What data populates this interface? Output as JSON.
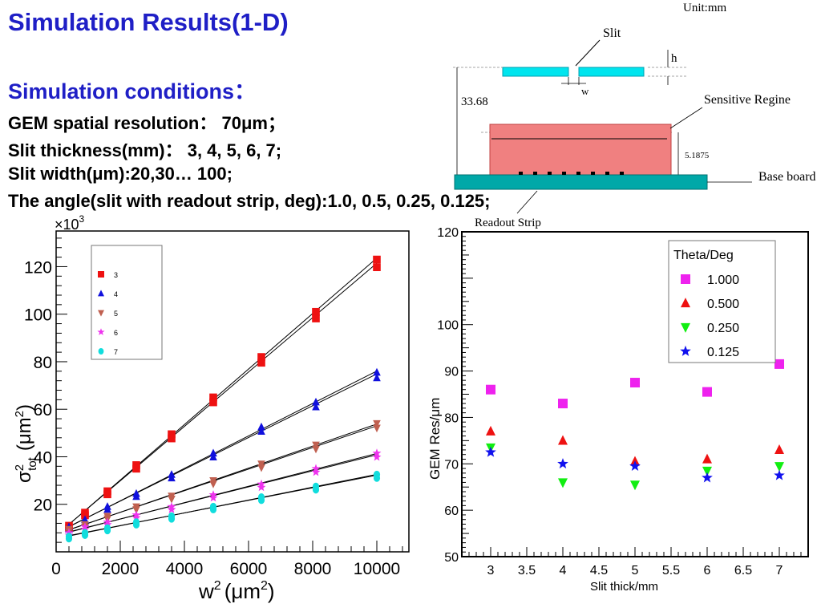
{
  "header": {
    "title": "Simulation Results(1-D)",
    "conditions_heading": "Simulation conditions：",
    "conditions": [
      "GEM spatial resolution：  70μm；",
      "Slit thickness(mm)：  3, 4, 5, 6, 7;",
      "Slit width(μm):20,30… 100;",
      "The angle(slit with readout strip, deg):1.0, 0.5, 0.25, 0.125;"
    ]
  },
  "diagram": {
    "unit": "Unit:mm",
    "slit_label": "Slit",
    "h_label": "h",
    "w_label": "w",
    "height_label": "33.68",
    "sensitive_label": "Sensitive Regine",
    "sensitive_height": "5.1875",
    "base_label": "Base board",
    "readout_label": "Readout Strip",
    "colors": {
      "slit": "#00e5ee",
      "sensitive": "#f08080",
      "base": "#00a8a8",
      "strip": "#000000"
    }
  },
  "chart_data": [
    {
      "type": "scatter",
      "xlabel_base": "w",
      "xlabel_unit": "(μm",
      "ylabel_base": "σ",
      "ylabel_sup": "2",
      "ylabel_sub": "tot",
      "ylabel_unit": "(μm",
      "exponent_label": "×10",
      "exponent_power": "3",
      "x_ticks": [
        "0",
        "2000",
        "4000",
        "6000",
        "8000",
        "10000"
      ],
      "y_ticks": [
        "20",
        "40",
        "60",
        "80",
        "100",
        "120"
      ],
      "xlim": [
        0,
        11000
      ],
      "ylim": [
        0,
        135000
      ],
      "x": [
        400,
        900,
        1600,
        2500,
        3600,
        4900,
        6400,
        8100,
        10000
      ],
      "legend_position": "top-left",
      "series": [
        {
          "name": "3",
          "marker": "square",
          "color": "#ee1111",
          "values": [
            11000,
            16500,
            25500,
            36500,
            49500,
            65000,
            82000,
            101000,
            123000
          ]
        },
        {
          "name": "4",
          "marker": "triangle-up",
          "color": "#1010dd",
          "values": [
            10500,
            13500,
            19000,
            24500,
            32500,
            41500,
            52500,
            63000,
            75500
          ]
        },
        {
          "name": "5",
          "marker": "triangle-down",
          "color": "#c06050",
          "values": [
            9500,
            11500,
            15000,
            19000,
            23500,
            30000,
            37000,
            45000,
            54000
          ]
        },
        {
          "name": "6",
          "marker": "star",
          "color": "#ee33ee",
          "values": [
            8000,
            10500,
            12500,
            15500,
            19000,
            24000,
            28500,
            35000,
            41500
          ]
        },
        {
          "name": "7",
          "marker": "circle",
          "color": "#11dddd",
          "values": [
            6500,
            8000,
            10000,
            12500,
            15000,
            19000,
            23000,
            27500,
            32500
          ]
        }
      ]
    },
    {
      "type": "scatter",
      "xlabel": "Slit thick/mm",
      "ylabel": "GEM Res/μm",
      "x_ticks": [
        "3",
        "3.5",
        "4",
        "4.5",
        "5",
        "5.5",
        "6",
        "6.5",
        "7"
      ],
      "y_ticks": [
        "50",
        "60",
        "70",
        "80",
        "90",
        "100",
        "120"
      ],
      "xlim": [
        2.6,
        7.4
      ],
      "ylim": [
        50,
        120
      ],
      "x": [
        3,
        4,
        5,
        6,
        7
      ],
      "legend_title": "Theta/Deg",
      "legend_position": "top-right",
      "series": [
        {
          "name": "1.000",
          "marker": "square",
          "color": "#ee22ee",
          "values": [
            86,
            83,
            87.5,
            85.5,
            91.5
          ]
        },
        {
          "name": "0.500",
          "marker": "triangle-up",
          "color": "#ee1111",
          "values": [
            77,
            75,
            70.5,
            71,
            73
          ]
        },
        {
          "name": "0.250",
          "marker": "triangle-down",
          "color": "#11ee11",
          "values": [
            73.5,
            66,
            65.5,
            68.5,
            69.5
          ]
        },
        {
          "name": "0.125",
          "marker": "star",
          "color": "#1111ee",
          "values": [
            72.5,
            70,
            69.5,
            67,
            67.5
          ]
        }
      ]
    }
  ]
}
